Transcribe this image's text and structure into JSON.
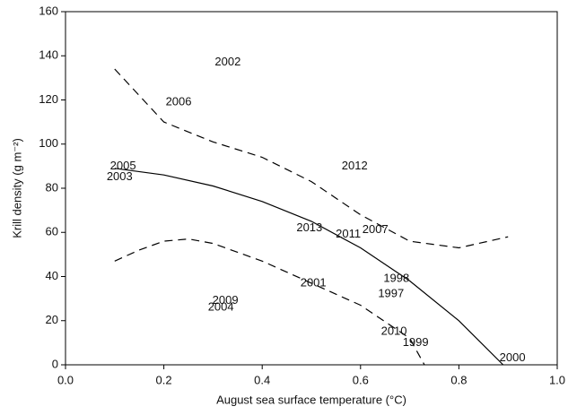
{
  "chart_data": {
    "type": "scatter",
    "x_label": "August sea surface temperature (°C)",
    "y_label": "Krill density (g m⁻²)",
    "xlim": [
      0,
      1
    ],
    "ylim": [
      0,
      160
    ],
    "xticks": [
      {
        "value": 0,
        "label": "0.0"
      },
      0.2,
      0.4,
      0.6,
      0.8,
      {
        "value": 1,
        "label": "1.0"
      }
    ],
    "yticks": [
      0,
      20,
      40,
      60,
      80,
      100,
      120,
      140,
      160
    ],
    "labels": [
      "2002",
      "2006",
      "2005",
      "2003",
      "2012",
      "2013",
      "2011",
      "2007",
      "1998",
      "1997",
      "2001",
      "2009",
      "2004",
      "2010",
      "1999",
      "2000"
    ],
    "x": [
      0.33,
      0.23,
      0.117,
      0.11,
      0.588,
      0.496,
      0.575,
      0.63,
      0.673,
      0.662,
      0.504,
      0.325,
      0.316,
      0.668,
      0.712,
      0.909
    ],
    "values": [
      137,
      119,
      90,
      85,
      90,
      62,
      59,
      61,
      39,
      32,
      37,
      29,
      26,
      15,
      10,
      3
    ],
    "fit": {
      "x": [
        0.1,
        0.2,
        0.3,
        0.4,
        0.5,
        0.6,
        0.7,
        0.8,
        0.89
      ],
      "values": [
        89,
        86,
        81,
        74,
        65,
        53,
        38,
        20,
        0
      ]
    },
    "upper_band": {
      "x": [
        0.1,
        0.15,
        0.2,
        0.3,
        0.4,
        0.5,
        0.6,
        0.7,
        0.8,
        0.9
      ],
      "values": [
        134,
        122,
        110,
        101,
        94,
        83,
        68,
        56,
        53,
        58
      ]
    },
    "lower_band": {
      "x": [
        0.1,
        0.15,
        0.2,
        0.25,
        0.3,
        0.4,
        0.5,
        0.6,
        0.7,
        0.73
      ],
      "values": [
        47,
        52,
        56,
        57,
        55,
        47,
        37,
        27,
        12,
        0
      ]
    }
  }
}
